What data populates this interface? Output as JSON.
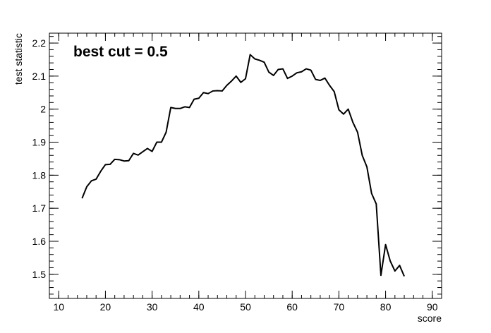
{
  "chart_data": {
    "type": "line",
    "xlabel": "score",
    "ylabel": "test statistic",
    "annotation": "best cut = 0.5",
    "xlim": [
      8,
      92
    ],
    "ylim": [
      1.427,
      2.23
    ],
    "x_ticks": [
      10,
      20,
      30,
      40,
      50,
      60,
      70,
      80,
      90
    ],
    "x_tick_labels": [
      "10",
      "20",
      "30",
      "40",
      "50",
      "60",
      "70",
      "80",
      "90"
    ],
    "y_ticks": [
      1.5,
      1.6,
      1.7,
      1.8,
      1.9,
      2.0,
      2.1,
      2.2
    ],
    "y_tick_labels": [
      "1.5",
      "1.6",
      "1.7",
      "1.8",
      "1.9",
      "2",
      "2.1",
      "2.2"
    ],
    "grid": false,
    "line_color": "#000000",
    "series": [
      {
        "x": [
          15,
          16,
          17,
          18,
          19,
          20,
          21,
          22,
          23,
          24,
          25,
          26,
          27,
          28,
          29,
          30,
          31,
          32,
          33,
          34,
          35,
          36,
          37,
          38,
          39,
          40,
          41,
          42,
          43,
          44,
          45,
          46,
          47,
          48,
          49,
          50,
          51,
          52,
          53,
          54,
          55,
          56,
          57,
          58,
          59,
          60,
          61,
          62,
          63,
          64,
          65,
          66,
          67,
          68,
          69,
          70,
          71,
          72,
          73,
          74,
          75,
          76,
          77,
          78,
          79,
          80,
          81,
          82,
          83,
          84
        ],
        "y": [
          1.73,
          1.765,
          1.783,
          1.788,
          1.812,
          1.832,
          1.833,
          1.848,
          1.847,
          1.843,
          1.844,
          1.866,
          1.861,
          1.871,
          1.881,
          1.872,
          1.9,
          1.9,
          1.93,
          2.005,
          2.002,
          2.002,
          2.007,
          2.005,
          2.03,
          2.033,
          2.05,
          2.047,
          2.055,
          2.056,
          2.055,
          2.072,
          2.085,
          2.1,
          2.081,
          2.092,
          2.165,
          2.152,
          2.148,
          2.142,
          2.112,
          2.102,
          2.12,
          2.122,
          2.093,
          2.1,
          2.11,
          2.113,
          2.122,
          2.118,
          2.09,
          2.087,
          2.094,
          2.072,
          2.053,
          1.998,
          1.985,
          2.0,
          1.96,
          1.93,
          1.86,
          1.825,
          1.745,
          1.713,
          1.497,
          1.59,
          1.54,
          1.51,
          1.527,
          1.494
        ]
      }
    ]
  }
}
